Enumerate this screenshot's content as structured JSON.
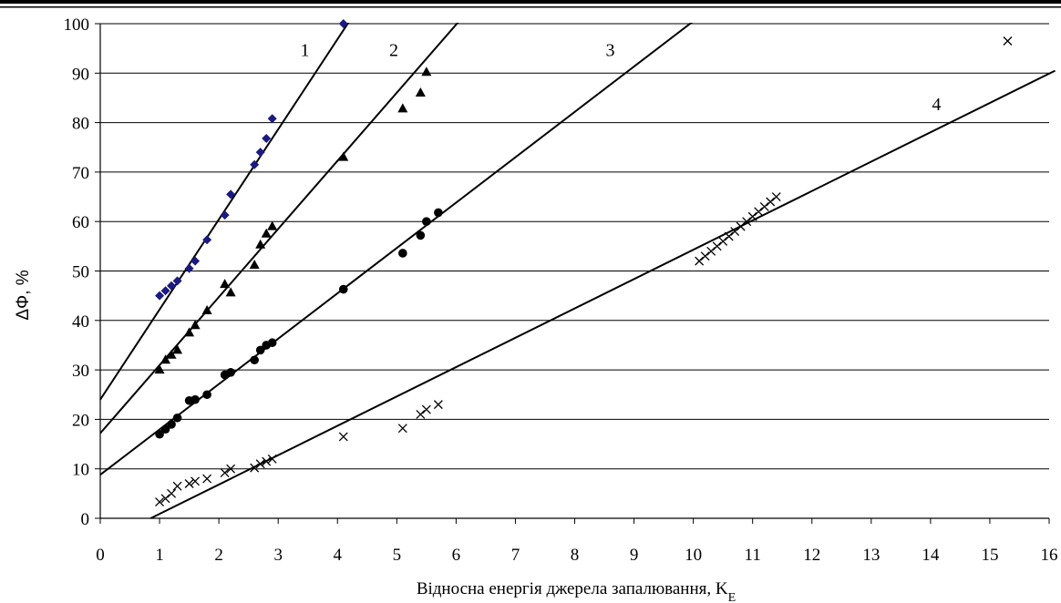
{
  "chart_data": {
    "type": "scatter",
    "xlabel_main": "Відносна енергія джерела запалювання, K",
    "xlabel_sub": "E",
    "ylabel": "ΔΦ, %",
    "xlim": [
      0,
      16
    ],
    "ylim": [
      0,
      100
    ],
    "x_ticks": [
      0,
      1,
      2,
      3,
      4,
      5,
      6,
      7,
      8,
      9,
      10,
      11,
      12,
      13,
      14,
      15,
      16
    ],
    "y_ticks": [
      0,
      10,
      20,
      30,
      40,
      50,
      60,
      70,
      80,
      90,
      100
    ],
    "grid": "horizontal",
    "series": [
      {
        "name": "1",
        "marker": "diamond",
        "color": "#1a1a80",
        "points": [
          [
            1.0,
            45
          ],
          [
            1.1,
            46
          ],
          [
            1.2,
            47
          ],
          [
            1.3,
            48
          ],
          [
            1.5,
            50.5
          ],
          [
            1.6,
            52
          ],
          [
            1.8,
            56.3
          ],
          [
            2.1,
            61.3
          ],
          [
            2.2,
            65.5
          ],
          [
            2.6,
            71.5
          ],
          [
            2.7,
            74
          ],
          [
            2.8,
            76.8
          ],
          [
            2.9,
            80.8
          ],
          [
            4.1,
            100
          ]
        ],
        "fit_line": [
          [
            0,
            24
          ],
          [
            4.2,
            100.5
          ]
        ]
      },
      {
        "name": "2",
        "marker": "triangle",
        "color": "#000000",
        "points": [
          [
            1.0,
            30
          ],
          [
            1.1,
            32
          ],
          [
            1.2,
            33
          ],
          [
            1.3,
            34
          ],
          [
            1.5,
            37.5
          ],
          [
            1.6,
            39
          ],
          [
            1.8,
            42
          ],
          [
            2.1,
            47.3
          ],
          [
            2.2,
            45.6
          ],
          [
            2.6,
            51.2
          ],
          [
            2.7,
            55.3
          ],
          [
            2.8,
            57.5
          ],
          [
            2.9,
            59
          ],
          [
            4.1,
            73
          ],
          [
            5.1,
            82.8
          ],
          [
            5.4,
            86
          ],
          [
            5.5,
            90.2
          ]
        ],
        "fit_line": [
          [
            0,
            17.2
          ],
          [
            6.05,
            100.5
          ]
        ]
      },
      {
        "name": "3",
        "marker": "circle",
        "color": "#000000",
        "points": [
          [
            1.0,
            17
          ],
          [
            1.1,
            18
          ],
          [
            1.2,
            19
          ],
          [
            1.3,
            20.3
          ],
          [
            1.5,
            23.8
          ],
          [
            1.6,
            24
          ],
          [
            1.8,
            25
          ],
          [
            2.1,
            29
          ],
          [
            2.2,
            29.5
          ],
          [
            2.6,
            32
          ],
          [
            2.7,
            34
          ],
          [
            2.8,
            35
          ],
          [
            2.9,
            35.5
          ],
          [
            4.1,
            46.3
          ],
          [
            5.1,
            53.6
          ],
          [
            5.4,
            57.2
          ],
          [
            5.5,
            60
          ],
          [
            5.7,
            61.8
          ]
        ],
        "fit_line": [
          [
            0,
            8.8
          ],
          [
            10,
            100.5
          ]
        ]
      },
      {
        "name": "4",
        "marker": "cross",
        "color": "#000000",
        "points": [
          [
            1.0,
            3.3
          ],
          [
            1.1,
            4
          ],
          [
            1.2,
            5
          ],
          [
            1.3,
            6.5
          ],
          [
            1.5,
            7
          ],
          [
            1.6,
            7.5
          ],
          [
            1.8,
            8
          ],
          [
            2.1,
            9.2
          ],
          [
            2.2,
            10
          ],
          [
            2.6,
            10.2
          ],
          [
            2.7,
            11
          ],
          [
            2.8,
            11.5
          ],
          [
            2.9,
            12
          ],
          [
            4.1,
            16.5
          ],
          [
            5.1,
            18.2
          ],
          [
            5.4,
            21
          ],
          [
            5.5,
            22
          ],
          [
            5.7,
            23
          ],
          [
            10.1,
            52
          ],
          [
            10.2,
            53
          ],
          [
            10.3,
            54
          ],
          [
            10.4,
            55
          ],
          [
            10.5,
            56
          ],
          [
            10.6,
            57
          ],
          [
            10.7,
            58
          ],
          [
            10.8,
            59
          ],
          [
            10.9,
            60
          ],
          [
            11.0,
            61
          ],
          [
            11.1,
            62
          ],
          [
            11.2,
            63
          ],
          [
            11.3,
            64
          ],
          [
            11.4,
            65
          ],
          [
            15.3,
            96.5
          ]
        ],
        "fit_line": [
          [
            0.85,
            0
          ],
          [
            16.1,
            90.5
          ]
        ]
      }
    ],
    "line_labels": [
      {
        "text": "1",
        "x": 3.45,
        "y": 93.5
      },
      {
        "text": "2",
        "x": 4.95,
        "y": 93.5
      },
      {
        "text": "3",
        "x": 8.6,
        "y": 93.5
      },
      {
        "text": "4",
        "x": 14.1,
        "y": 82.5
      }
    ]
  }
}
